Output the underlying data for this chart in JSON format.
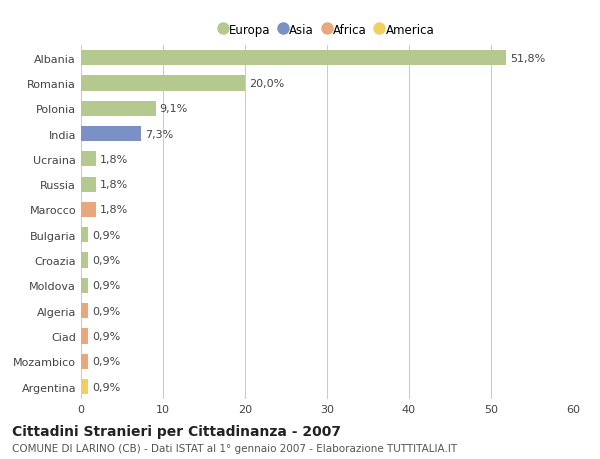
{
  "categories": [
    "Albania",
    "Romania",
    "Polonia",
    "India",
    "Ucraina",
    "Russia",
    "Marocco",
    "Bulgaria",
    "Croazia",
    "Moldova",
    "Algeria",
    "Ciad",
    "Mozambico",
    "Argentina"
  ],
  "values": [
    51.8,
    20.0,
    9.1,
    7.3,
    1.8,
    1.8,
    1.8,
    0.9,
    0.9,
    0.9,
    0.9,
    0.9,
    0.9,
    0.9
  ],
  "labels": [
    "51,8%",
    "20,0%",
    "9,1%",
    "7,3%",
    "1,8%",
    "1,8%",
    "1,8%",
    "0,9%",
    "0,9%",
    "0,9%",
    "0,9%",
    "0,9%",
    "0,9%",
    "0,9%"
  ],
  "continents": [
    "Europa",
    "Europa",
    "Europa",
    "Asia",
    "Europa",
    "Europa",
    "Africa",
    "Europa",
    "Europa",
    "Europa",
    "Africa",
    "Africa",
    "Africa",
    "America"
  ],
  "continent_colors": {
    "Europa": "#b5c98e",
    "Asia": "#7b90c4",
    "Africa": "#e8a87c",
    "America": "#f2d060"
  },
  "legend_order": [
    "Europa",
    "Asia",
    "Africa",
    "America"
  ],
  "xlim": [
    0,
    60
  ],
  "xticks": [
    0,
    10,
    20,
    30,
    40,
    50,
    60
  ],
  "title": "Cittadini Stranieri per Cittadinanza - 2007",
  "subtitle": "COMUNE DI LARINO (CB) - Dati ISTAT al 1° gennaio 2007 - Elaborazione TUTTITALIA.IT",
  "background_color": "#ffffff",
  "grid_color": "#cccccc",
  "bar_height": 0.6,
  "label_fontsize": 8,
  "tick_fontsize": 8,
  "title_fontsize": 10,
  "subtitle_fontsize": 7.5
}
